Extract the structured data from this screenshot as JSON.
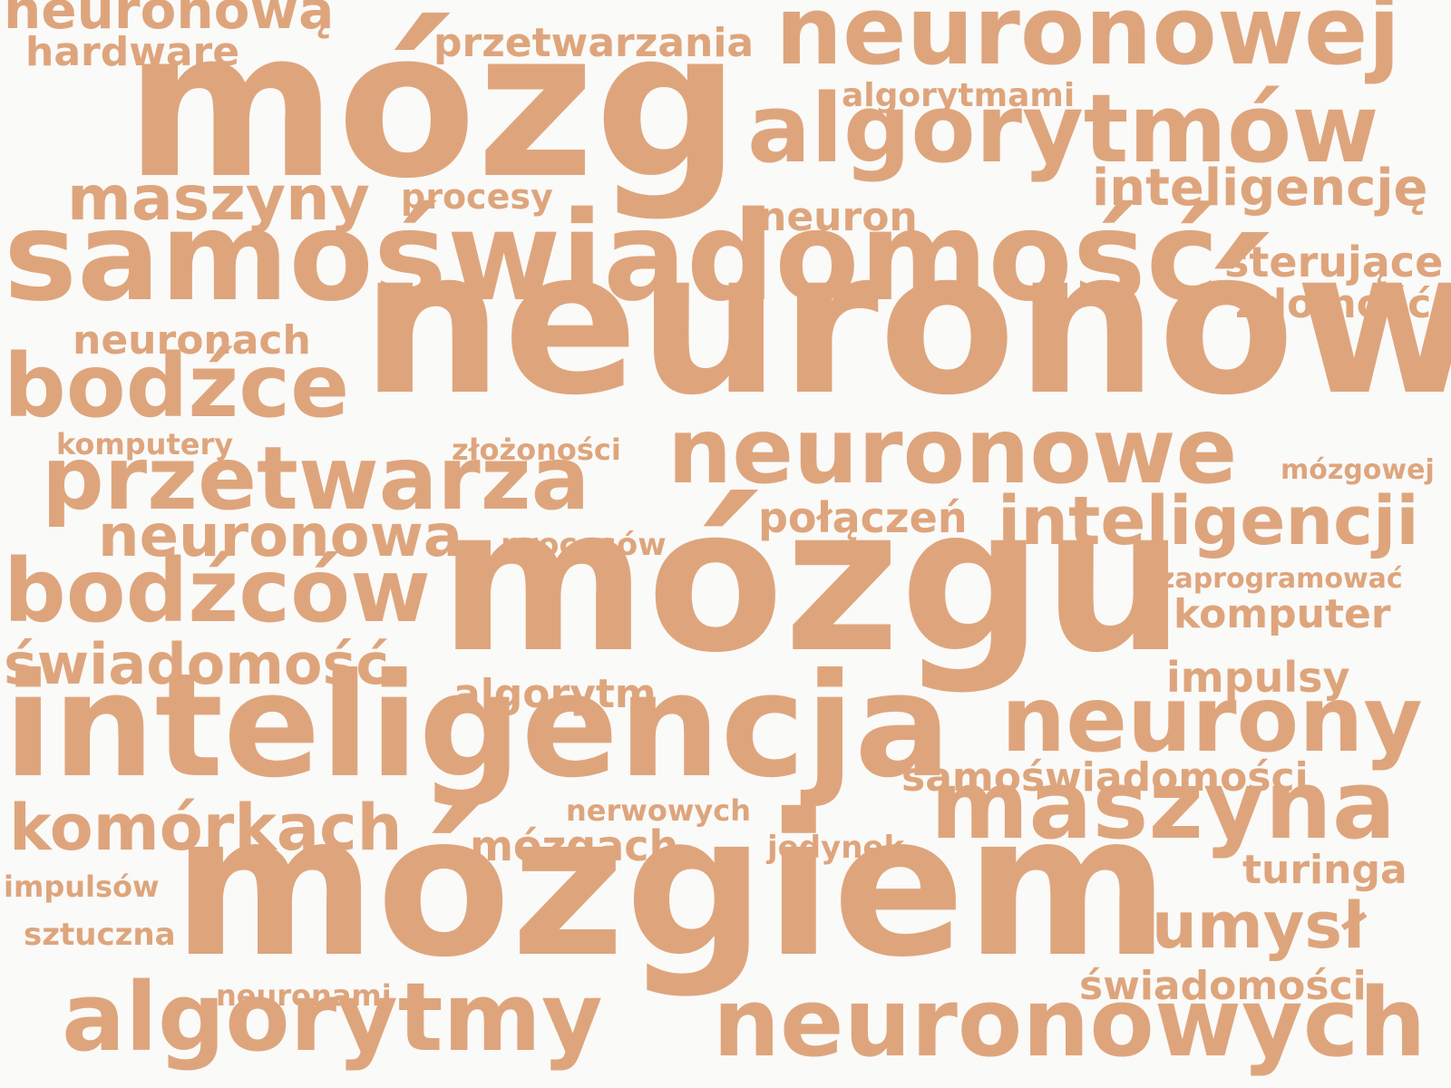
{
  "color": "#dea57d",
  "background": "#fafaf8",
  "words": {
    "w01": "neuronową",
    "w02": "hardware",
    "w03": "przetwarzania",
    "w04": "neuronowej",
    "w05": "algorytmami",
    "w06": "mózg",
    "w07": "algorytmów",
    "w08": "maszyny",
    "w09": "procesy",
    "w10": "inteligencję",
    "w11": "neuron",
    "w12": "samoświadomość",
    "w13": "sterujące",
    "w14": "zdolność",
    "w15": "neuronach",
    "w16": "neuronów",
    "w17": "bodźce",
    "w18": "komputery",
    "w19": "złożoności",
    "w20": "neuronowe",
    "w21": "mózgowej",
    "w22": "przetwarza",
    "w23": "połączeń",
    "w24": "inteligencji",
    "w25": "neuronowa",
    "w26": "procesów",
    "w27": "bodźców",
    "w28": "mózgu",
    "w29": "zaprogramować",
    "w30": "komputer",
    "w31": "świadomość",
    "w32": "algorytm",
    "w33": "impulsy",
    "w34": "inteligencja",
    "w35": "neurony",
    "w36": "samoświadomości",
    "w37": "nerwowych",
    "w38": "komórkach",
    "w39": "maszyna",
    "w40": "mózgach",
    "w41": "jedynek",
    "w42": "turinga",
    "w43": "impulsów",
    "w44": "mózgiem",
    "w45": "sztuczna",
    "w46": "umysł",
    "w47": "świadomości",
    "w48": "neuronami",
    "w49": "algorytmy",
    "w50": "neuronowych"
  }
}
